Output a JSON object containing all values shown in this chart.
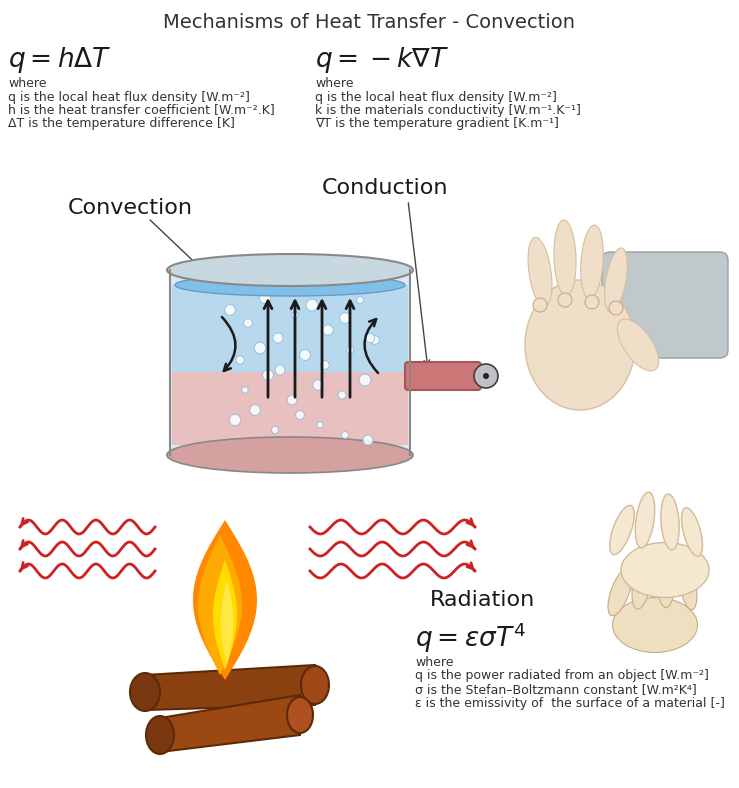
{
  "title": "Mechanisms of Heat Transfer - Convection",
  "title_fontsize": 14,
  "title_color": "#333333",
  "convection_label": "Convection",
  "conduction_label": "Conduction",
  "radiation_label": "Radiation",
  "eq1_formula": "$q = h\\Delta T$",
  "eq1_where": "where",
  "eq1_line1": "q is the local heat flux density [W.m⁻²]",
  "eq1_line2": "h is the heat transfer coefficient [W.m⁻².K]",
  "eq1_line3": "ΔT is the temperature difference [K]",
  "eq2_formula": "$q =  -k\\nabla T$",
  "eq2_where": "where",
  "eq2_line1": "q is the local heat flux density [W.m⁻²]",
  "eq2_line2": "k is the materials conductivity [W.m⁻¹.K⁻¹]",
  "eq2_line3": "∇T is the temperature gradient [K.m⁻¹]",
  "eq3_formula": "$q =  \\varepsilon\\sigma T^4$",
  "eq3_where": "where",
  "eq3_line1": "q is the power radiated from an object [W.m⁻²]",
  "eq3_line2": "σ is the Stefan–Boltzmann constant [W.m²K⁴]",
  "eq3_line3": "ε is the emissivity of  the surface of a material [-]",
  "bg_color": "#ffffff",
  "text_color_dark": "#333333",
  "eq_formula_color": "#1a1a1a",
  "label_color": "#1a1a1a",
  "wave_color": "#cc2222"
}
